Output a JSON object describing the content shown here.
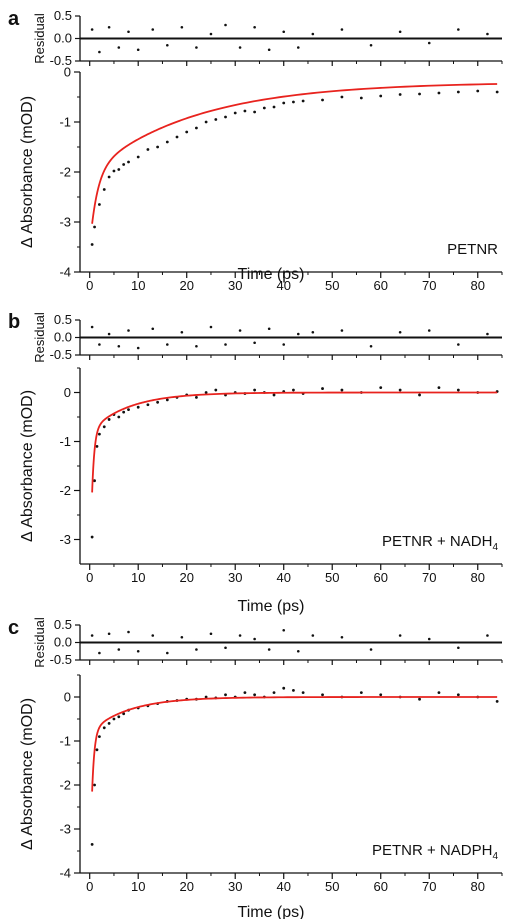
{
  "figure": {
    "panels": [
      {
        "id": "a",
        "letter": "a",
        "label": "PETNR",
        "label_sub": ""
      },
      {
        "id": "b",
        "letter": "b",
        "label": "PETNR + NADH",
        "label_sub": "4"
      },
      {
        "id": "c",
        "letter": "c",
        "label": "PETNR + NADPH",
        "label_sub": "4"
      }
    ]
  },
  "chart_data": [
    {
      "type": "scatter",
      "panel": "a",
      "xlabel": "Time (ps)",
      "ylabel": "Δ Absorbance (mOD)",
      "residual_ylabel": "Residual",
      "xlim": [
        -2,
        85
      ],
      "ylim": [
        -4,
        0
      ],
      "xticks": [
        0,
        10,
        20,
        30,
        40,
        50,
        60,
        70,
        80
      ],
      "yticks": [
        -4,
        -3,
        -2,
        -1,
        0
      ],
      "residual_ylim": [
        -0.5,
        0.5
      ],
      "residual_yticks": [
        -0.5,
        0.0,
        0.5
      ],
      "residual_yticklabels": [
        "-0.5",
        "0.0",
        "0.5"
      ],
      "fit": {
        "color": "#e8231e",
        "y_inf": -0.2,
        "components": [
          {
            "amp": -1.5,
            "tau": 1.5
          },
          {
            "amp": -1.8,
            "tau": 22
          }
        ]
      },
      "series": [
        {
          "role": "data",
          "color": "#111111",
          "x": [
            0.5,
            1.0,
            2.0,
            3.0,
            4.0,
            5.0,
            6.0,
            7.0,
            8.0,
            10.0,
            12.0,
            14.0,
            16.0,
            18.0,
            20.0,
            22.0,
            24.0,
            26.0,
            28.0,
            30.0,
            32.0,
            34.0,
            36.0,
            38.0,
            40.0,
            42.0,
            44.0,
            48.0,
            52.0,
            56.0,
            60.0,
            64.0,
            68.0,
            72.0,
            76.0,
            80.0,
            84.0
          ],
          "y": [
            -3.45,
            -3.1,
            -2.65,
            -2.35,
            -2.1,
            -1.98,
            -1.95,
            -1.85,
            -1.8,
            -1.7,
            -1.55,
            -1.5,
            -1.4,
            -1.3,
            -1.2,
            -1.12,
            -1.0,
            -0.95,
            -0.9,
            -0.82,
            -0.78,
            -0.8,
            -0.72,
            -0.7,
            -0.62,
            -0.6,
            -0.58,
            -0.56,
            -0.5,
            -0.52,
            -0.48,
            -0.45,
            -0.44,
            -0.42,
            -0.4,
            -0.38,
            -0.4
          ]
        },
        {
          "role": "residual",
          "color": "#111111",
          "x": [
            0.5,
            2.0,
            4.0,
            6.0,
            8.0,
            10.0,
            13.0,
            16.0,
            19.0,
            22.0,
            25.0,
            28.0,
            31.0,
            34.0,
            37.0,
            40.0,
            43.0,
            46.0,
            52.0,
            58.0,
            64.0,
            70.0,
            76.0,
            82.0
          ],
          "y": [
            0.2,
            -0.3,
            0.25,
            -0.2,
            0.15,
            -0.25,
            0.2,
            -0.15,
            0.25,
            -0.2,
            0.1,
            0.3,
            -0.2,
            0.25,
            -0.25,
            0.15,
            -0.2,
            0.1,
            0.2,
            -0.15,
            0.15,
            -0.1,
            0.2,
            0.1
          ]
        }
      ]
    },
    {
      "type": "scatter",
      "panel": "b",
      "xlabel": "Time (ps)",
      "ylabel": "Δ Absorbance (mOD)",
      "residual_ylabel": "Residual",
      "xlim": [
        -2,
        85
      ],
      "ylim": [
        -3.5,
        0.5
      ],
      "xticks": [
        0,
        10,
        20,
        30,
        40,
        50,
        60,
        70,
        80
      ],
      "yticks": [
        -3,
        -2,
        -1,
        0
      ],
      "residual_ylim": [
        -0.5,
        0.5
      ],
      "residual_yticks": [
        -0.5,
        0.0,
        0.5
      ],
      "residual_yticklabels": [
        "-0.5",
        "0.0",
        "0.5"
      ],
      "fit": {
        "color": "#e8231e",
        "y_inf": 0.0,
        "components": [
          {
            "amp": -3.5,
            "tau": 0.5
          },
          {
            "amp": -0.8,
            "tau": 8
          }
        ]
      },
      "series": [
        {
          "role": "data",
          "color": "#111111",
          "x": [
            0.5,
            1.0,
            1.5,
            2.0,
            3.0,
            4.0,
            5.0,
            6.0,
            7.0,
            8.0,
            10.0,
            12.0,
            14.0,
            16.0,
            18.0,
            20.0,
            22.0,
            24.0,
            26.0,
            28.0,
            30.0,
            32.0,
            34.0,
            36.0,
            38.0,
            40.0,
            42.0,
            44.0,
            48.0,
            52.0,
            56.0,
            60.0,
            64.0,
            68.0,
            72.0,
            76.0,
            80.0,
            84.0
          ],
          "y": [
            -2.95,
            -1.8,
            -1.1,
            -0.85,
            -0.7,
            -0.55,
            -0.45,
            -0.5,
            -0.4,
            -0.35,
            -0.3,
            -0.25,
            -0.2,
            -0.15,
            -0.1,
            -0.05,
            -0.1,
            0.0,
            0.05,
            -0.05,
            0.0,
            -0.02,
            0.05,
            0.0,
            -0.05,
            0.02,
            0.05,
            -0.02,
            0.08,
            0.05,
            0.0,
            0.1,
            0.05,
            -0.05,
            0.1,
            0.05,
            0.0,
            0.02
          ]
        },
        {
          "role": "residual",
          "color": "#111111",
          "x": [
            0.5,
            2.0,
            4.0,
            6.0,
            8.0,
            10.0,
            13.0,
            16.0,
            19.0,
            22.0,
            25.0,
            28.0,
            31.0,
            34.0,
            37.0,
            40.0,
            43.0,
            46.0,
            52.0,
            58.0,
            64.0,
            70.0,
            76.0,
            82.0
          ],
          "y": [
            0.3,
            -0.2,
            0.1,
            -0.25,
            0.2,
            -0.3,
            0.25,
            -0.2,
            0.15,
            -0.25,
            0.3,
            -0.2,
            0.2,
            -0.15,
            0.25,
            -0.2,
            0.1,
            0.15,
            0.2,
            -0.25,
            0.15,
            0.2,
            -0.2,
            0.1
          ]
        }
      ]
    },
    {
      "type": "scatter",
      "panel": "c",
      "xlabel": "Time (ps)",
      "ylabel": "Δ Absorbance (mOD)",
      "residual_ylabel": "Residual",
      "xlim": [
        -2,
        85
      ],
      "ylim": [
        -4,
        0.5
      ],
      "xticks": [
        0,
        10,
        20,
        30,
        40,
        50,
        60,
        70,
        80
      ],
      "yticks": [
        -4,
        -3,
        -2,
        -1,
        0
      ],
      "residual_ylim": [
        -0.5,
        0.5
      ],
      "residual_yticks": [
        -0.5,
        0.0,
        0.5
      ],
      "residual_yticklabels": [
        "-0.5",
        "0.0",
        "0.5"
      ],
      "fit": {
        "color": "#e8231e",
        "y_inf": 0.0,
        "components": [
          {
            "amp": -3.8,
            "tau": 0.5
          },
          {
            "amp": -0.8,
            "tau": 8
          }
        ]
      },
      "series": [
        {
          "role": "data",
          "color": "#111111",
          "x": [
            0.5,
            1.0,
            1.5,
            2.0,
            3.0,
            4.0,
            5.0,
            6.0,
            7.0,
            8.0,
            10.0,
            12.0,
            14.0,
            16.0,
            18.0,
            20.0,
            22.0,
            24.0,
            26.0,
            28.0,
            30.0,
            32.0,
            34.0,
            36.0,
            38.0,
            40.0,
            42.0,
            44.0,
            48.0,
            52.0,
            56.0,
            60.0,
            64.0,
            68.0,
            72.0,
            76.0,
            80.0,
            84.0
          ],
          "y": [
            -3.35,
            -2.0,
            -1.2,
            -0.9,
            -0.7,
            -0.6,
            -0.5,
            -0.45,
            -0.38,
            -0.3,
            -0.25,
            -0.2,
            -0.15,
            -0.1,
            -0.08,
            -0.05,
            -0.05,
            0.0,
            -0.02,
            0.05,
            0.0,
            0.1,
            0.05,
            0.0,
            0.1,
            0.2,
            0.15,
            0.1,
            0.05,
            0.0,
            0.1,
            0.05,
            0.0,
            -0.05,
            0.1,
            0.05,
            0.0,
            -0.1
          ]
        },
        {
          "role": "residual",
          "color": "#111111",
          "x": [
            0.5,
            2.0,
            4.0,
            6.0,
            8.0,
            10.0,
            13.0,
            16.0,
            19.0,
            22.0,
            25.0,
            28.0,
            31.0,
            34.0,
            37.0,
            40.0,
            43.0,
            46.0,
            52.0,
            58.0,
            64.0,
            70.0,
            76.0,
            82.0
          ],
          "y": [
            0.2,
            -0.3,
            0.25,
            -0.2,
            0.3,
            -0.25,
            0.2,
            -0.3,
            0.15,
            -0.2,
            0.25,
            -0.15,
            0.2,
            0.1,
            -0.2,
            0.35,
            -0.25,
            0.2,
            0.15,
            -0.2,
            0.2,
            0.1,
            -0.15,
            0.2
          ]
        }
      ]
    }
  ]
}
